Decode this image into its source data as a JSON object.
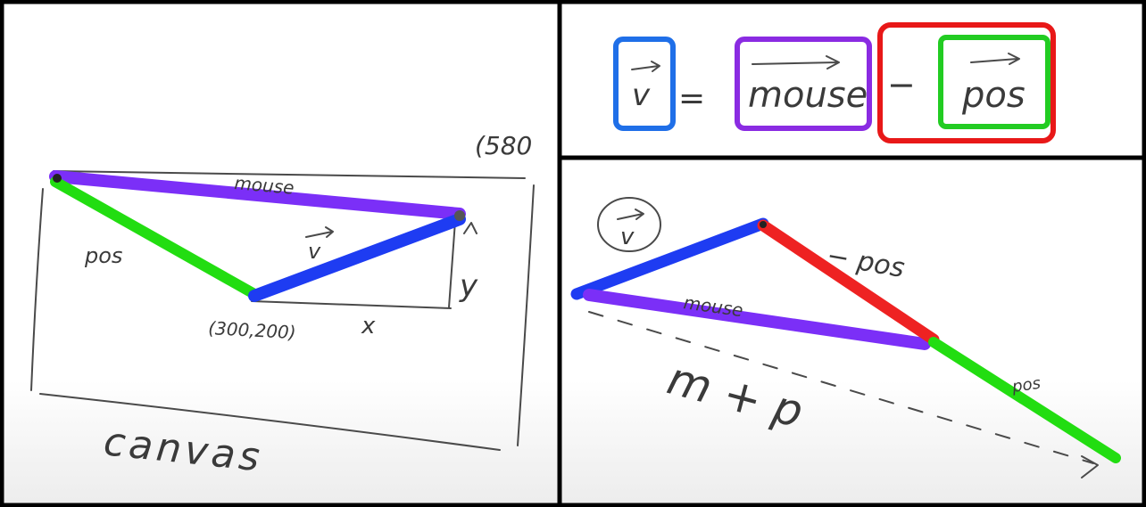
{
  "left_panel": {
    "corner_label": "(580",
    "mouse_label": "mouse",
    "pos_label": "pos",
    "v_label": "v",
    "origin_label": "(300,200)",
    "x_label": "x",
    "y_label": "y",
    "canvas_label": "canvas"
  },
  "equation": {
    "v": "v",
    "equals": "=",
    "mouse": "mouse",
    "minus": "−",
    "pos": "pos"
  },
  "right_panel": {
    "v_label": "v",
    "minus_pos_label": "− pos",
    "mouse_label": "mouse",
    "pos_label": "pos",
    "m_plus_p_label": "m + p"
  },
  "colors": {
    "panel_border": "#000000",
    "mouse": "#7b2ff7",
    "pos": "#22dd11",
    "v": "#1e3cf2",
    "minus_pos": "#ee2222",
    "equation_v_box": "#1f6fe8",
    "equation_mouse_box": "#8a2be2",
    "equation_minus_box": "#e81818",
    "equation_pos_box": "#22cc22"
  }
}
